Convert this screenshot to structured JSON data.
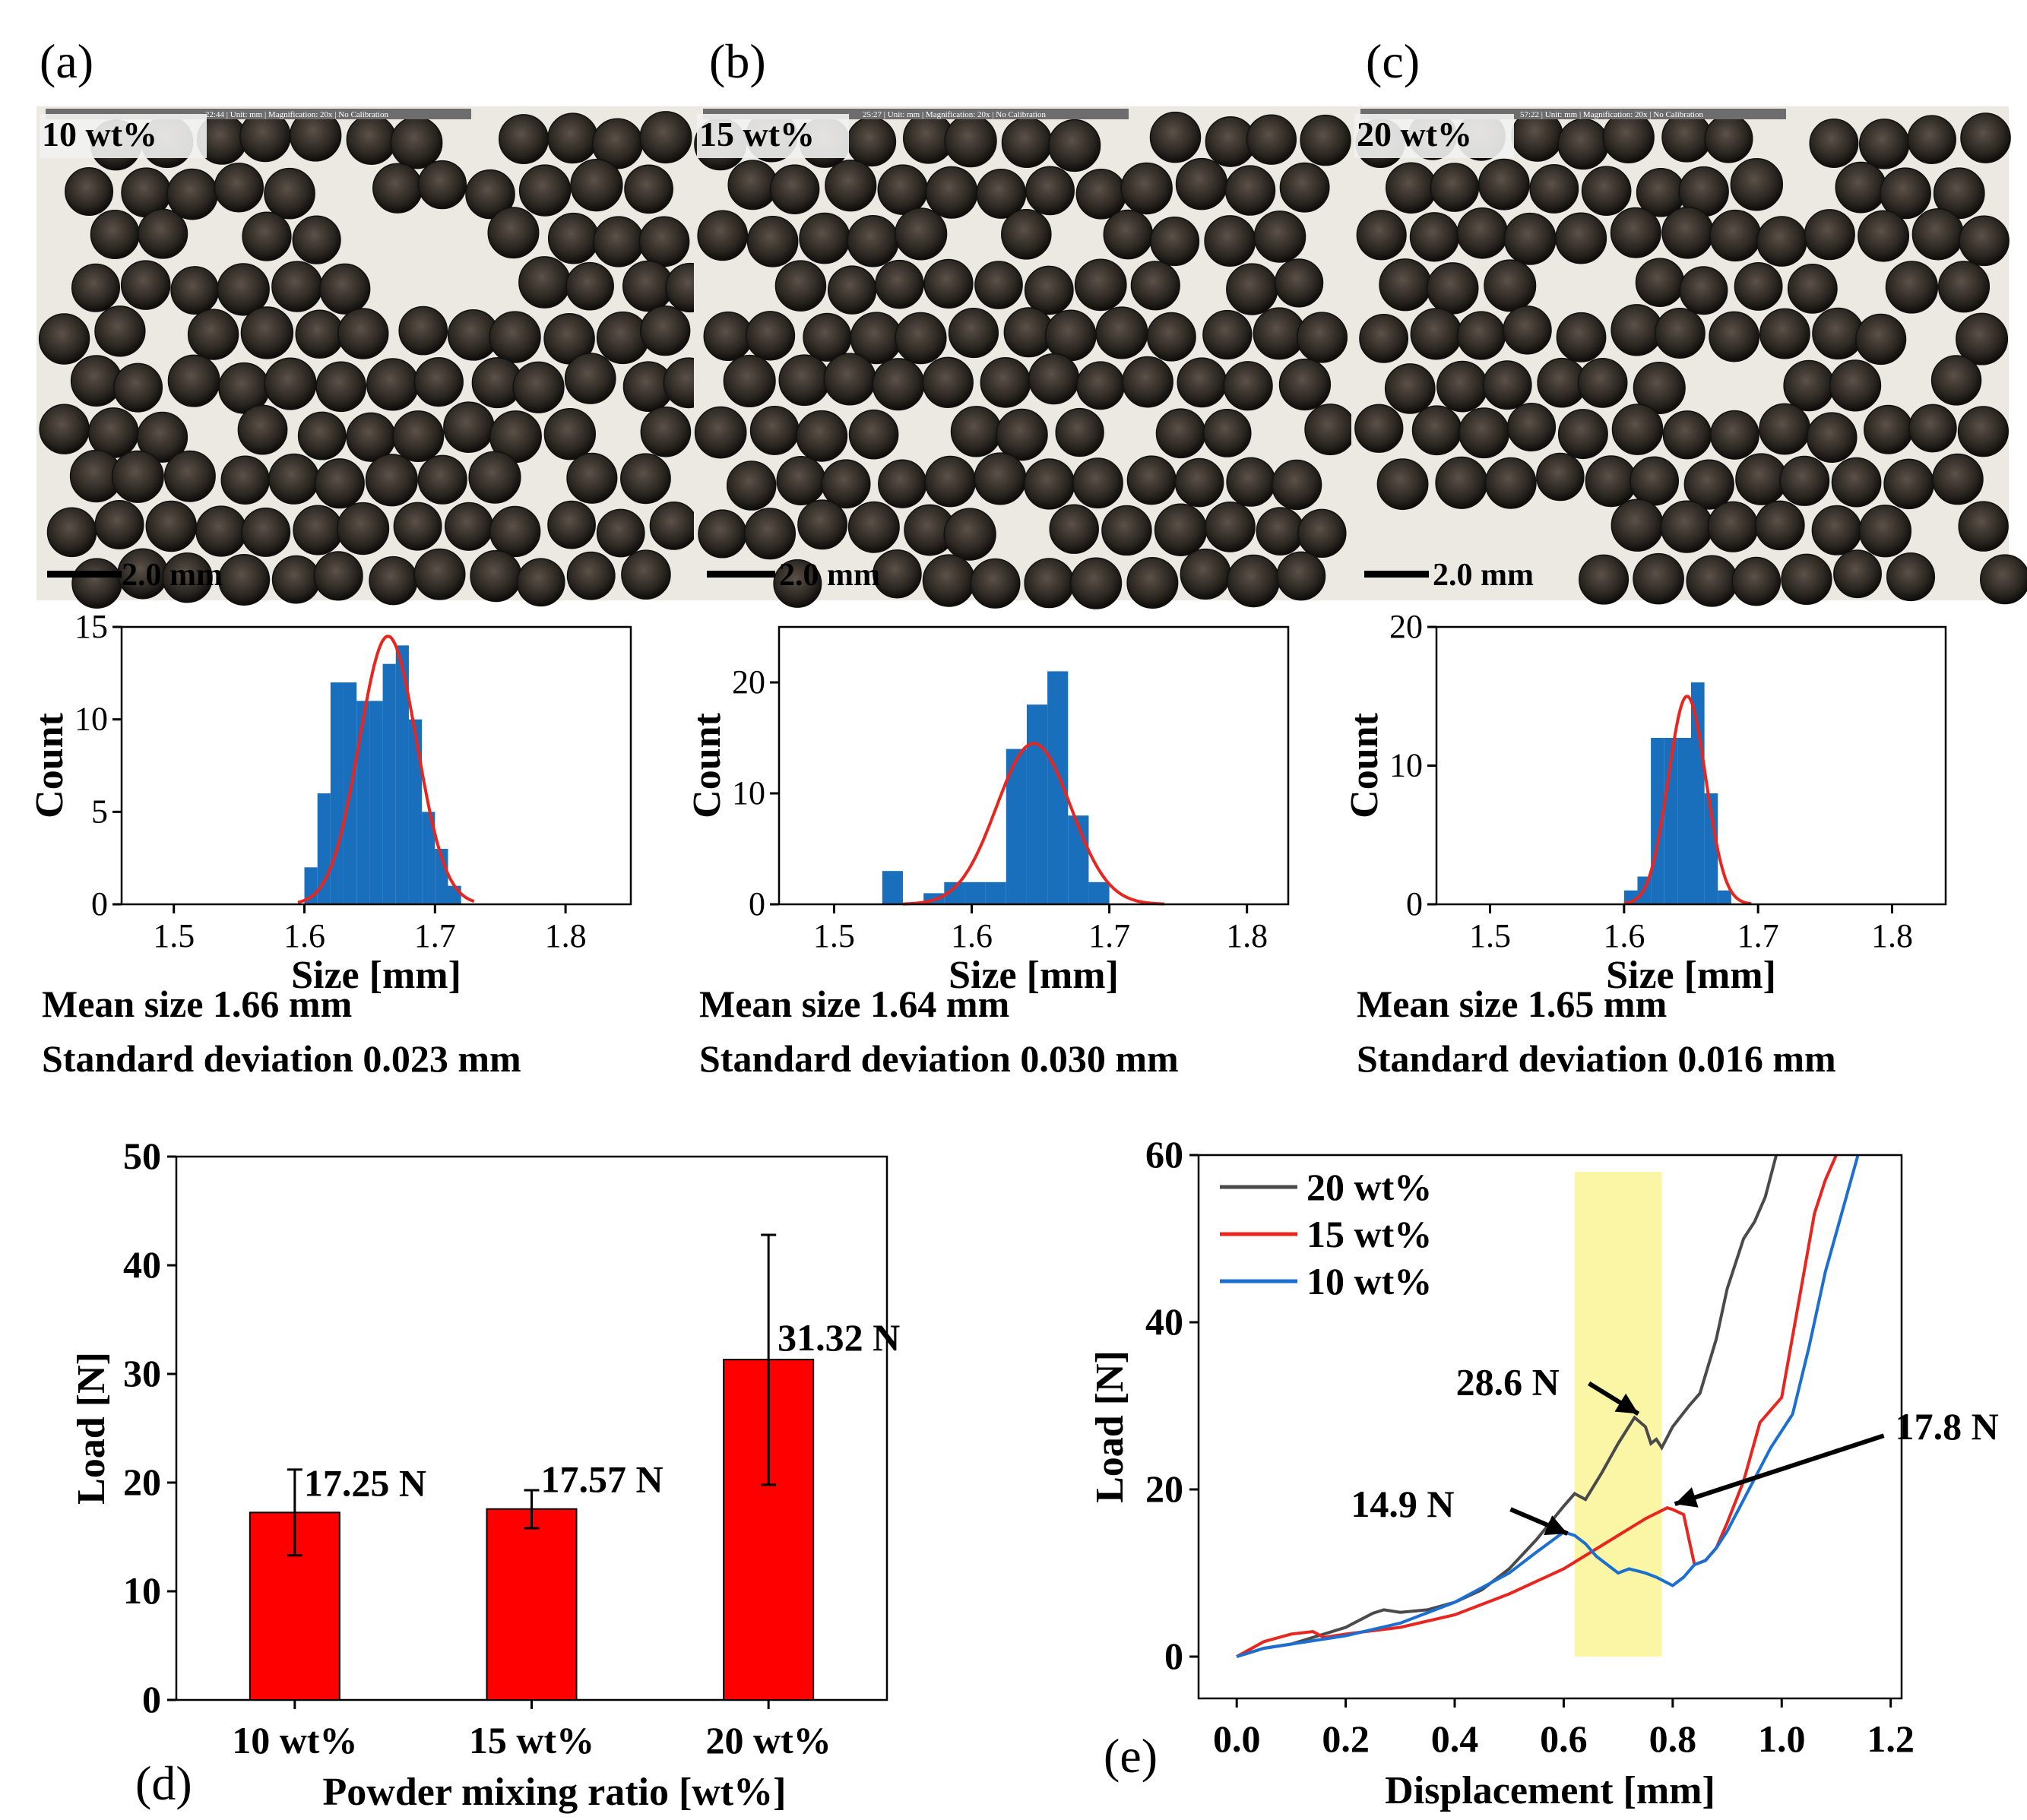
{
  "panels": [
    {
      "label": "(a)",
      "photo": {
        "overlay_text": "10 wt%",
        "scale_label": "2.0 mm",
        "toolbar_text": "22:44 | Unit: mm | Magnification: 20x | No Calibration"
      },
      "stats": {
        "mean": "Mean size 1.66 mm",
        "sd": "Standard deviation 0.023 mm"
      }
    },
    {
      "label": "(b)",
      "photo": {
        "overlay_text": "15 wt%",
        "scale_label": "2.0 mm",
        "toolbar_text": "25:27 | Unit: mm | Magnification: 20x | No Calibration"
      },
      "stats": {
        "mean": "Mean size 1.64 mm",
        "sd": "Standard deviation 0.030 mm"
      }
    },
    {
      "label": "(c)",
      "photo": {
        "overlay_text": "20 wt%",
        "scale_label": "2.0 mm",
        "toolbar_text": "57:22 | Unit: mm | Magnification: 20x | No Calibration"
      },
      "stats": {
        "mean": "Mean size 1.65 mm",
        "sd": "Standard deviation 0.016 mm"
      }
    }
  ],
  "chart_data": [
    {
      "id": "hist-a",
      "type": "bar",
      "subtype": "histogram-with-gaussian-fit",
      "xlabel": "Size [mm]",
      "ylabel": "Count",
      "xlim": [
        1.46,
        1.85
      ],
      "ylim": [
        0,
        15
      ],
      "xticks": [
        1.5,
        1.6,
        1.7,
        1.8
      ],
      "yticks": [
        0,
        5,
        10,
        15
      ],
      "bin_width": 0.01,
      "bins": [
        1.6,
        1.61,
        1.62,
        1.63,
        1.64,
        1.65,
        1.66,
        1.67,
        1.68,
        1.69,
        1.7,
        1.71
      ],
      "counts": [
        2,
        6,
        12,
        12,
        11,
        11,
        13,
        14,
        10,
        5,
        3,
        1
      ],
      "fit": {
        "mean": 1.664,
        "sigma": 0.022,
        "peak": 14.5,
        "range": [
          1.595,
          1.73
        ]
      },
      "bar_color": "#1a6fbd",
      "fit_color": "#e8261f"
    },
    {
      "id": "hist-b",
      "type": "bar",
      "subtype": "histogram-with-gaussian-fit",
      "xlabel": "Size [mm]",
      "ylabel": "Count",
      "xlim": [
        1.46,
        1.83
      ],
      "ylim": [
        0,
        25
      ],
      "xticks": [
        1.5,
        1.6,
        1.7,
        1.8
      ],
      "yticks": [
        0,
        10,
        20
      ],
      "bin_width": 0.015,
      "bins": [
        1.535,
        1.565,
        1.58,
        1.595,
        1.61,
        1.625,
        1.64,
        1.655,
        1.67,
        1.685
      ],
      "counts": [
        3,
        1,
        2,
        2,
        2,
        14,
        18,
        21,
        8,
        2
      ],
      "fit": {
        "mean": 1.645,
        "sigma": 0.027,
        "peak": 14.5,
        "range": [
          1.55,
          1.74
        ]
      },
      "bar_color": "#1a6fbd",
      "fit_color": "#e8261f"
    },
    {
      "id": "hist-c",
      "type": "bar",
      "subtype": "histogram-with-gaussian-fit",
      "xlabel": "Size [mm]",
      "ylabel": "Count",
      "xlim": [
        1.46,
        1.84
      ],
      "ylim": [
        0,
        20
      ],
      "xticks": [
        1.5,
        1.6,
        1.7,
        1.8
      ],
      "yticks": [
        0,
        10,
        20
      ],
      "bin_width": 0.01,
      "bins": [
        1.6,
        1.61,
        1.62,
        1.63,
        1.64,
        1.65,
        1.66,
        1.67
      ],
      "counts": [
        1,
        2,
        12,
        12,
        12,
        16,
        8,
        1
      ],
      "fit": {
        "mean": 1.647,
        "sigma": 0.014,
        "peak": 15,
        "range": [
          1.6,
          1.695
        ]
      },
      "bar_color": "#1a6fbd",
      "fit_color": "#e8261f"
    },
    {
      "id": "bar-d",
      "type": "bar",
      "label": "(d)",
      "xlabel": "Powder mixing ratio [wt%]",
      "ylabel": "Load [N]",
      "ylim": [
        0,
        50
      ],
      "yticks": [
        0,
        10,
        20,
        30,
        40,
        50
      ],
      "categories": [
        "10 wt%",
        "15 wt%",
        "20 wt%"
      ],
      "values": [
        17.25,
        17.57,
        31.32
      ],
      "errors": [
        [
          13.3,
          21.2
        ],
        [
          15.8,
          19.3
        ],
        [
          19.8,
          42.8
        ]
      ],
      "data_labels": [
        "17.25 N",
        "17.57 N",
        "31.32 N"
      ],
      "bar_color": "#ff0000"
    },
    {
      "id": "line-e",
      "type": "line",
      "label": "(e)",
      "xlabel": "Displacement [mm]",
      "ylabel": "Load [N]",
      "xlim": [
        -0.07,
        1.22
      ],
      "ylim": [
        -5,
        60
      ],
      "xticks": [
        0.0,
        0.2,
        0.4,
        0.6,
        0.8,
        1.0,
        1.2
      ],
      "xtick_labels": [
        "0.0",
        "0.2",
        "0.4",
        "0.6",
        "0.8",
        "1.0",
        "1.2"
      ],
      "yticks": [
        0,
        20,
        40,
        60
      ],
      "highlight_band": {
        "x": [
          0.62,
          0.78
        ],
        "y": [
          0,
          58
        ],
        "color": "#fbf6a6"
      },
      "legend_position": "top-left",
      "series": [
        {
          "name": "20 wt%",
          "color": "#4a4a4a",
          "x": [
            0,
            0.05,
            0.1,
            0.15,
            0.2,
            0.25,
            0.27,
            0.3,
            0.35,
            0.4,
            0.45,
            0.5,
            0.55,
            0.6,
            0.62,
            0.64,
            0.67,
            0.7,
            0.73,
            0.75,
            0.76,
            0.77,
            0.78,
            0.8,
            0.83,
            0.85,
            0.88,
            0.9,
            0.93,
            0.95,
            0.97,
            0.99
          ],
          "y": [
            0,
            1,
            1.5,
            2.5,
            3.5,
            5.2,
            5.6,
            5.3,
            5.6,
            6.5,
            8,
            10.5,
            14,
            18,
            19.5,
            18.8,
            22,
            25.5,
            28.6,
            27.5,
            25.5,
            26,
            25,
            27.5,
            30,
            31.5,
            38,
            44,
            50,
            52,
            55,
            60
          ]
        },
        {
          "name": "15 wt%",
          "color": "#e8261f",
          "x": [
            0,
            0.05,
            0.1,
            0.14,
            0.16,
            0.2,
            0.3,
            0.4,
            0.5,
            0.6,
            0.65,
            0.7,
            0.75,
            0.79,
            0.8,
            0.82,
            0.83,
            0.84,
            0.86,
            0.88,
            0.9,
            0.93,
            0.96,
            1.0,
            1.03,
            1.06,
            1.08,
            1.1
          ],
          "y": [
            0,
            1.8,
            2.7,
            3,
            2.3,
            2.7,
            3.5,
            5,
            7.5,
            10.5,
            12.5,
            14.5,
            16.5,
            17.8,
            17.6,
            17,
            14,
            11,
            11.5,
            13,
            16,
            21,
            28,
            31,
            42,
            53,
            57,
            60
          ]
        },
        {
          "name": "10 wt%",
          "color": "#1a6fd0",
          "x": [
            0,
            0.05,
            0.1,
            0.15,
            0.2,
            0.3,
            0.4,
            0.5,
            0.55,
            0.6,
            0.62,
            0.64,
            0.66,
            0.7,
            0.72,
            0.75,
            0.77,
            0.8,
            0.82,
            0.84,
            0.86,
            0.88,
            0.9,
            0.94,
            0.98,
            1.02,
            1.05,
            1.08,
            1.11,
            1.14
          ],
          "y": [
            0,
            1,
            1.5,
            2,
            2.5,
            4,
            6.5,
            10,
            12.5,
            14.9,
            14.5,
            13.5,
            12,
            10,
            10.5,
            10,
            9.5,
            8.5,
            9.5,
            11,
            11.5,
            13,
            15,
            20,
            25,
            29,
            37,
            46,
            53,
            60
          ]
        }
      ],
      "annotations": [
        {
          "text": "28.6 N",
          "x": 0.73,
          "y": 28.6
        },
        {
          "text": "14.9 N",
          "x": 0.6,
          "y": 14.9
        },
        {
          "text": "17.8 N",
          "x": 0.79,
          "y": 17.8
        }
      ]
    }
  ]
}
